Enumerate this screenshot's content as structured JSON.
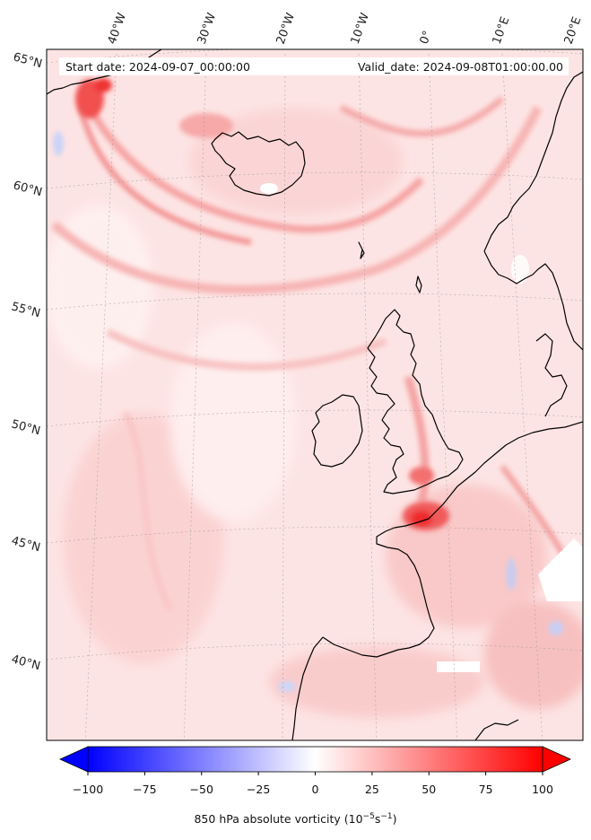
{
  "header": {
    "start_label": "Start date: 2024-09-07_00:00:00",
    "valid_label": "Valid_date: 2024-09-08T01:00:00.00"
  },
  "graticule": {
    "lon_labels": [
      "40°W",
      "30°W",
      "20°W",
      "10°W",
      "0°",
      "10°E",
      "20°E"
    ],
    "lat_labels": [
      "65°N",
      "60°N",
      "55°N",
      "50°N",
      "45°N",
      "40°N"
    ]
  },
  "colorbar": {
    "ticks": [
      "−100",
      "−75",
      "−50",
      "−25",
      "0",
      "25",
      "50",
      "75",
      "100"
    ],
    "min": -100,
    "max": 100,
    "extend": "both",
    "colormap": "bwr",
    "label_prefix": "850 hPa absolute vorticity (10",
    "label_exp1": "−5",
    "label_mid": "s",
    "label_exp2": "−1",
    "label_suffix": ")"
  },
  "colors": {
    "negative_max": "#0000ff",
    "zero": "#ffffff",
    "positive_max": "#ff0000",
    "background_field": "#fde3e3",
    "coastline": "#000000"
  }
}
